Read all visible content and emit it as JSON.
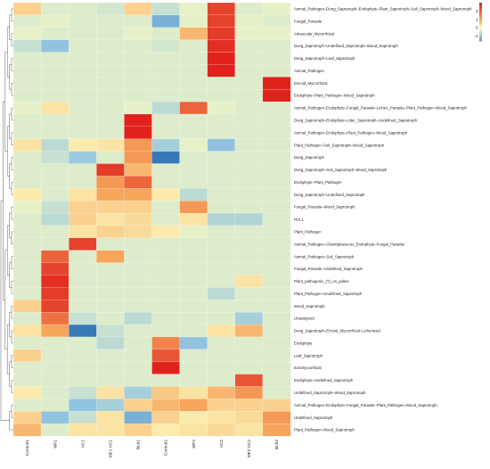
{
  "chart_data": {
    "type": "heatmap",
    "columns": [
      "Control1",
      "MF1",
      "VC1",
      "MF1 VC1",
      "Bch1",
      "Control2",
      "MF2",
      "VC2",
      "MF2 VC2",
      "Bch2"
    ],
    "rows": [
      "Animal_Pathogen–Dung_Saprotroph–Endophyte–Plant_Saprotroph–Soil_Saprotroph–Wood_Saprotroph",
      "Fungal_Parasite",
      "Arbuscular_Mycorrhizal",
      "Dung_Saprotroph–Undefined_Saprotroph–Wood_Saprotroph",
      "Dung_Saprotroph–Leaf_Saprotroph",
      "Animal_Pathogen",
      "Ericoid_Mycorrhizal",
      "Endophyte–Plant_Pathogen–Wood_Saprotroph",
      "Animal_Pathogen–Endophyte–Fungal_Parasite–Lichen_Parasite–Plant_Pathogen–Wood_Saprotroph",
      "Dung_Saprotroph–Endophyte–Litter_Saprotroph–Undefined_Saprotroph",
      "Animal_Pathogen–Endophyte–Plant_Pathogen–Wood_Saprotroph",
      "Plant_Pathogen–Soil_Saprotroph–Wood_Saprotroph",
      "Dung_Saprotroph",
      "Dung_Saprotroph–Soil_Saprotroph–Wood_Saprotroph",
      "Endophyte–Plant_Pathogen",
      "Dung_Saprotroph–Undefined_Saprotroph",
      "Fungal_Parasite–Wood_Saprotroph",
      "NULL",
      "Plant_Pathogen",
      "Animal_Pathogen–Clavicipitaceous_Endophyte–Fungal_Parasite",
      "Animal_Pathogen–Soil_Saprotroph",
      "Fungal_Parasite–Undefined_Saprotroph",
      "Plant_pathogenic_(?)_on_pollen",
      "Plant_Pathogen–Undefined_Saprotroph",
      "Wood_Saprotroph",
      "Unassigned",
      "Dung_Saprotroph–Ericoid_Mycorrhizal–Lichenized",
      "Endophyte",
      "Leaf_Saprotroph",
      "Ectomycorrhizal",
      "Endophyte–Undefined_Saprotroph",
      "Undefined_Saprotroph–Wood_Saprotroph",
      "Animal_Pathogen–Endophyte–Fungal_Parasite–Plant_Pathogen–Wood_Saprotroph",
      "Undefined_Saprotroph",
      "Plant_Pathogen–Wood_Saprotroph"
    ],
    "values": [
      [
        0.5,
        -0.3,
        -0.3,
        -0.4,
        0.5,
        -0.5,
        -0.2,
        2.5,
        -0.3,
        -0.2
      ],
      [
        -0.3,
        -0.2,
        -0.3,
        -0.3,
        -0.3,
        -1.2,
        -0.2,
        2.5,
        -0.2,
        -0.3
      ],
      [
        -0.2,
        -0.3,
        -0.3,
        -0.3,
        -0.2,
        -0.3,
        0.8,
        2.6,
        -0.2,
        -0.2
      ],
      [
        -0.5,
        -1.0,
        -0.3,
        -0.3,
        -0.3,
        -0.4,
        -0.3,
        2.8,
        -0.3,
        -0.3
      ],
      [
        -0.3,
        -0.3,
        -0.3,
        -0.3,
        -0.3,
        -0.3,
        -0.3,
        3.0,
        -0.3,
        -0.3
      ],
      [
        -0.3,
        -0.3,
        -0.3,
        -0.3,
        -0.3,
        -0.3,
        -0.3,
        3.0,
        -0.3,
        -0.3
      ],
      [
        -0.3,
        -0.3,
        -0.3,
        -0.3,
        -0.3,
        -0.3,
        -0.3,
        -0.3,
        -0.3,
        3.0
      ],
      [
        -0.3,
        -0.3,
        -0.3,
        -0.3,
        -0.3,
        -0.3,
        -0.3,
        -0.3,
        -0.3,
        3.0
      ],
      [
        -0.2,
        0.3,
        -0.3,
        -0.3,
        -0.2,
        -0.6,
        2.0,
        -0.2,
        -0.3,
        -0.3
      ],
      [
        -0.3,
        -0.3,
        -0.3,
        -0.3,
        3.0,
        -0.3,
        -0.3,
        -0.3,
        -0.3,
        -0.3
      ],
      [
        -0.3,
        -0.3,
        -0.3,
        -0.3,
        3.0,
        -0.3,
        -0.3,
        -0.3,
        -0.3,
        -0.3
      ],
      [
        0.3,
        -0.6,
        0.2,
        0.3,
        1.2,
        -0.8,
        -0.2,
        -1.0,
        -0.3,
        -0.3
      ],
      [
        -0.3,
        -0.5,
        -0.9,
        -0.3,
        1.2,
        -1.8,
        -0.3,
        -0.3,
        -0.3,
        -0.3
      ],
      [
        -0.3,
        -0.3,
        -0.3,
        2.6,
        0.8,
        -0.3,
        -0.3,
        -0.3,
        -0.3,
        -0.3
      ],
      [
        -0.3,
        -0.3,
        -0.3,
        1.2,
        2.0,
        -0.3,
        -0.3,
        -0.3,
        -0.3,
        -0.3
      ],
      [
        0.2,
        -0.3,
        0.3,
        1.0,
        1.0,
        0.2,
        -0.6,
        -0.3,
        -0.3,
        -0.3
      ],
      [
        -0.2,
        -0.5,
        0.5,
        0.5,
        0.5,
        -0.3,
        1.2,
        -0.3,
        -0.3,
        -0.3
      ],
      [
        -0.3,
        -0.6,
        0.5,
        0.3,
        0.4,
        -0.3,
        0.3,
        -0.7,
        -0.7,
        -0.3
      ],
      [
        -0.3,
        -0.3,
        0.3,
        0.5,
        0.4,
        0.2,
        -0.2,
        -0.3,
        -0.3,
        -0.3
      ],
      [
        -0.3,
        -0.3,
        2.5,
        -0.3,
        -0.3,
        -0.3,
        -0.3,
        -0.3,
        -0.3,
        -0.3
      ],
      [
        -0.3,
        2.0,
        -0.3,
        1.0,
        -0.3,
        -0.3,
        -0.3,
        -0.3,
        -0.3,
        -0.3
      ],
      [
        -0.3,
        2.5,
        -0.3,
        -0.3,
        -0.3,
        -0.3,
        -0.3,
        -0.3,
        -0.3,
        -0.3
      ],
      [
        -0.3,
        2.8,
        -0.3,
        -0.3,
        -0.3,
        -0.3,
        -0.3,
        -0.3,
        0.3,
        -0.3
      ],
      [
        -0.3,
        2.6,
        -0.3,
        -0.3,
        -0.3,
        -0.3,
        -0.3,
        -0.6,
        -0.3,
        -0.3
      ],
      [
        0.5,
        2.5,
        -0.3,
        -0.3,
        -0.3,
        -0.3,
        -0.3,
        -0.3,
        -0.3,
        -0.3
      ],
      [
        -0.3,
        1.8,
        -0.5,
        -0.3,
        -0.6,
        -0.3,
        -0.3,
        -0.3,
        -0.8,
        -0.3
      ],
      [
        0.3,
        1.0,
        -1.8,
        -0.5,
        -0.3,
        -0.3,
        -0.3,
        0.3,
        0.8,
        -0.3
      ],
      [
        -0.3,
        -0.3,
        -0.3,
        -0.6,
        -0.3,
        1.5,
        -1.0,
        -0.3,
        -0.3,
        -0.3
      ],
      [
        0.5,
        -0.3,
        -0.3,
        -0.3,
        -0.3,
        2.2,
        -0.3,
        -0.3,
        -0.3,
        -0.3
      ],
      [
        -0.3,
        -0.3,
        -0.3,
        -0.3,
        -0.3,
        3.0,
        -0.3,
        -0.3,
        -0.3,
        -0.3
      ],
      [
        -0.3,
        -0.3,
        -0.3,
        -0.3,
        -0.3,
        -0.3,
        -0.3,
        -0.3,
        2.2,
        -0.3
      ],
      [
        0.2,
        -0.3,
        -0.5,
        0.3,
        -0.8,
        0.6,
        0.3,
        0.8,
        1.2,
        -0.3
      ],
      [
        -0.3,
        -0.3,
        -1.0,
        -0.8,
        0.5,
        0.8,
        1.0,
        0.5,
        0.5,
        0.5
      ],
      [
        0.5,
        -1.0,
        -0.5,
        0.3,
        -1.2,
        0.5,
        0.2,
        0.3,
        0.4,
        1.2
      ],
      [
        0.8,
        -0.3,
        0.3,
        0.3,
        0.5,
        0.2,
        0.3,
        0.4,
        0.3,
        1.0
      ]
    ],
    "legend": {
      "ticks": [
        2,
        1,
        0,
        -1
      ],
      "placement": "top-right"
    },
    "color_scale": {
      "low": "#2166ac",
      "mid_low": "#91c3e0",
      "mid": "#fdfdc2",
      "mid_high": "#f6a55b",
      "high": "#e0221c"
    }
  }
}
